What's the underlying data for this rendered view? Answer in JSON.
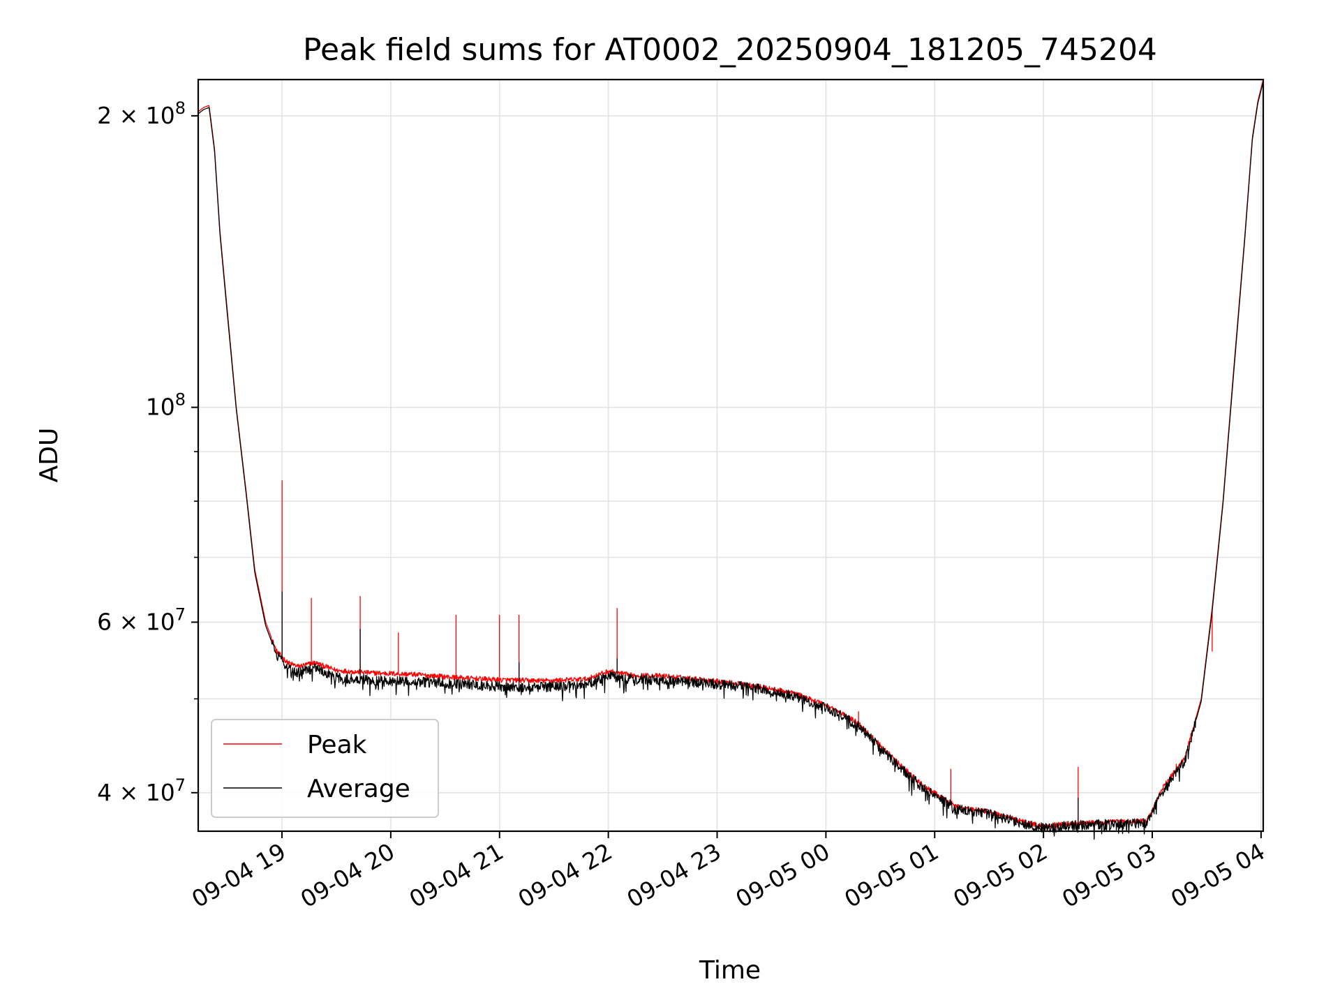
{
  "chart_data": {
    "type": "line",
    "title": "Peak field sums for AT0002_20250904_181205_745204",
    "xlabel": "Time",
    "ylabel": "ADU",
    "yscale": "log",
    "ylim": [
      36500000,
      218000000
    ],
    "xlim_hours": [
      -0.77,
      9.02
    ],
    "x_ticks": [
      {
        "h": 0,
        "label": "09-04 19"
      },
      {
        "h": 1,
        "label": "09-04 20"
      },
      {
        "h": 2,
        "label": "09-04 21"
      },
      {
        "h": 3,
        "label": "09-04 22"
      },
      {
        "h": 4,
        "label": "09-04 23"
      },
      {
        "h": 5,
        "label": "09-05 00"
      },
      {
        "h": 6,
        "label": "09-05 01"
      },
      {
        "h": 7,
        "label": "09-05 02"
      },
      {
        "h": 8,
        "label": "09-05 03"
      },
      {
        "h": 9,
        "label": "09-05 04"
      }
    ],
    "y_ticks": [
      {
        "v": 40000000,
        "base": "4 × 10",
        "exp": "7"
      },
      {
        "v": 60000000,
        "base": "6 × 10",
        "exp": "7"
      },
      {
        "v": 100000000,
        "base": "10",
        "exp": "8"
      },
      {
        "v": 200000000,
        "base": "2 × 10",
        "exp": "8"
      }
    ],
    "y_minor_ticks": [
      50000000,
      70000000,
      80000000,
      90000000
    ],
    "grid": true,
    "legend_position": "lower-left",
    "series": [
      {
        "name": "Peak",
        "color": "#ff0000",
        "x_hours": [
          -0.77,
          -0.72,
          -0.67,
          -0.62,
          -0.57,
          -0.5,
          -0.42,
          -0.33,
          -0.25,
          -0.15,
          -0.05,
          0.05,
          0.15,
          0.3,
          0.5,
          0.8,
          1.2,
          1.6,
          2.0,
          2.4,
          2.8,
          3.0,
          3.2,
          3.5,
          3.9,
          4.3,
          4.7,
          5.0,
          5.3,
          5.6,
          5.9,
          6.2,
          6.5,
          6.8,
          6.95,
          7.05,
          7.3,
          7.6,
          7.95,
          8.1,
          8.3,
          8.45,
          8.55,
          8.65,
          8.75,
          8.85,
          8.92,
          8.97,
          9.02
        ],
        "values": [
          202000000,
          204000000,
          205000000,
          185000000,
          152000000,
          125000000,
          100000000,
          82000000,
          68000000,
          60000000,
          56000000,
          54500000,
          54000000,
          54500000,
          53500000,
          53200000,
          53000000,
          52600000,
          52300000,
          52200000,
          52400000,
          53400000,
          52900000,
          52800000,
          52300000,
          51700000,
          50700000,
          49300000,
          47200000,
          43600000,
          40600000,
          38700000,
          38200000,
          37400000,
          37000000,
          37000000,
          37200000,
          37300000,
          37400000,
          40500000,
          43500000,
          50000000,
          62000000,
          80000000,
          110000000,
          150000000,
          190000000,
          207000000,
          218000000
        ],
        "spikes": [
          [
            0.0,
            84000000
          ],
          [
            0.27,
            63500000
          ],
          [
            0.72,
            63800000
          ],
          [
            1.07,
            58500000
          ],
          [
            1.6,
            61000000
          ],
          [
            2.0,
            61000000
          ],
          [
            2.18,
            61000000
          ],
          [
            3.08,
            62000000
          ],
          [
            3.75,
            52800000
          ],
          [
            5.3,
            48500000
          ],
          [
            6.15,
            42300000
          ],
          [
            7.32,
            42500000
          ],
          [
            8.22,
            42800000
          ],
          [
            8.55,
            56000000
          ]
        ]
      },
      {
        "name": "Average",
        "color": "#000000",
        "x_hours": [
          -0.77,
          -0.72,
          -0.67,
          -0.62,
          -0.57,
          -0.5,
          -0.42,
          -0.33,
          -0.25,
          -0.15,
          -0.05,
          0.05,
          0.15,
          0.3,
          0.5,
          0.8,
          1.2,
          1.6,
          2.0,
          2.4,
          2.8,
          3.0,
          3.2,
          3.5,
          3.9,
          4.3,
          4.7,
          5.0,
          5.3,
          5.6,
          5.9,
          6.2,
          6.5,
          6.8,
          6.95,
          7.05,
          7.3,
          7.6,
          7.95,
          8.1,
          8.3,
          8.45,
          8.55,
          8.65,
          8.75,
          8.85,
          8.92,
          8.97,
          9.02
        ],
        "values": [
          201000000,
          203000000,
          204000000,
          184000000,
          151000000,
          124000000,
          99500000,
          81500000,
          67500000,
          59500000,
          55500000,
          53800000,
          53200000,
          53800000,
          52600000,
          52300000,
          52100000,
          51800000,
          51500000,
          51400000,
          51700000,
          52800000,
          52400000,
          52300000,
          51900000,
          51400000,
          50400000,
          49000000,
          46900000,
          43300000,
          40400000,
          38500000,
          38000000,
          37200000,
          36800000,
          36800000,
          37000000,
          37100000,
          37200000,
          40200000,
          43200000,
          49700000,
          61500000,
          79500000,
          109000000,
          149000000,
          189000000,
          206000000,
          217000000
        ],
        "spikes": [
          [
            0.0,
            64500000
          ],
          [
            0.72,
            59000000
          ],
          [
            3.08,
            55000000
          ],
          [
            7.32,
            39500000
          ],
          [
            2.18,
            54500000
          ]
        ]
      }
    ]
  }
}
